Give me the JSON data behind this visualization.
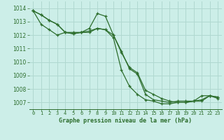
{
  "title": "Graphe pression niveau de la mer (hPa)",
  "bg_color": "#cceee8",
  "grid_color": "#b0d8d0",
  "line_color": "#2d6e2d",
  "ylim": [
    1006.5,
    1014.5
  ],
  "xlim": [
    -0.5,
    23.5
  ],
  "yticks": [
    1007,
    1008,
    1009,
    1010,
    1011,
    1012,
    1013,
    1014
  ],
  "xticks": [
    0,
    1,
    2,
    3,
    4,
    5,
    6,
    7,
    8,
    9,
    10,
    11,
    12,
    13,
    14,
    15,
    16,
    17,
    18,
    19,
    20,
    21,
    22,
    23
  ],
  "series": [
    [
      1013.8,
      1013.5,
      1013.1,
      1012.8,
      1012.2,
      1012.1,
      1012.2,
      1012.2,
      1012.5,
      1012.4,
      1012.0,
      1010.7,
      1009.6,
      1009.2,
      1007.9,
      1007.6,
      1007.3,
      1007.1,
      1007.0,
      1007.0,
      1007.1,
      1007.1,
      1007.5,
      1007.4
    ],
    [
      1013.8,
      1013.5,
      1013.1,
      1012.8,
      1012.2,
      1012.1,
      1012.2,
      1012.3,
      1012.5,
      1012.4,
      1011.8,
      1009.4,
      1008.2,
      1007.6,
      1007.2,
      1007.1,
      1006.9,
      1006.9,
      1007.0,
      1007.0,
      1007.1,
      1007.2,
      1007.5,
      1007.3
    ],
    [
      1013.8,
      1012.8,
      1012.4,
      1012.0,
      1012.2,
      1012.2,
      1012.2,
      1012.5,
      1013.6,
      1013.4,
      1012.0,
      1010.8,
      1009.5,
      1009.1,
      1007.6,
      1007.2,
      1007.1,
      1007.0,
      1007.1,
      1007.1,
      1007.1,
      1007.5,
      1007.5,
      1007.4
    ]
  ]
}
